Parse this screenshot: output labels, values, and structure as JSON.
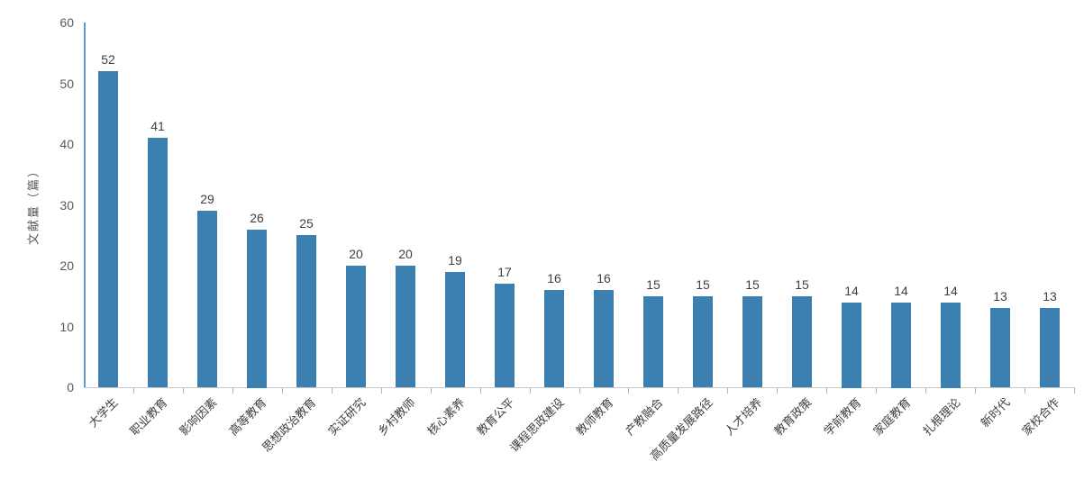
{
  "chart_data": {
    "type": "bar",
    "title": "",
    "xlabel": "",
    "ylabel": "文献量（篇）",
    "categories": [
      "大学生",
      "职业教育",
      "影响因素",
      "高等教育",
      "思想政治教育",
      "实证研究",
      "乡村教师",
      "核心素养",
      "教育公平",
      "课程思政建设",
      "教师教育",
      "产教融合",
      "高质量发展路径",
      "人才培养",
      "教育政策",
      "学前教育",
      "家庭教育",
      "扎根理论",
      "新时代",
      "家校合作"
    ],
    "values": [
      52,
      41,
      29,
      26,
      25,
      20,
      20,
      19,
      17,
      16,
      16,
      15,
      15,
      15,
      15,
      14,
      14,
      14,
      13,
      13
    ],
    "ylim": [
      0,
      60
    ],
    "yticks": [
      0,
      10,
      20,
      30,
      40,
      50,
      60
    ],
    "grid": false,
    "legend": false,
    "colors": {
      "bar": "#3c7fb1",
      "axis_line": "#5b9bd5",
      "tick": "#8fc0e4",
      "baseline": "#c9c9c9",
      "value_label": "#404040",
      "tick_label": "#595959",
      "category_label": "#404040"
    }
  }
}
